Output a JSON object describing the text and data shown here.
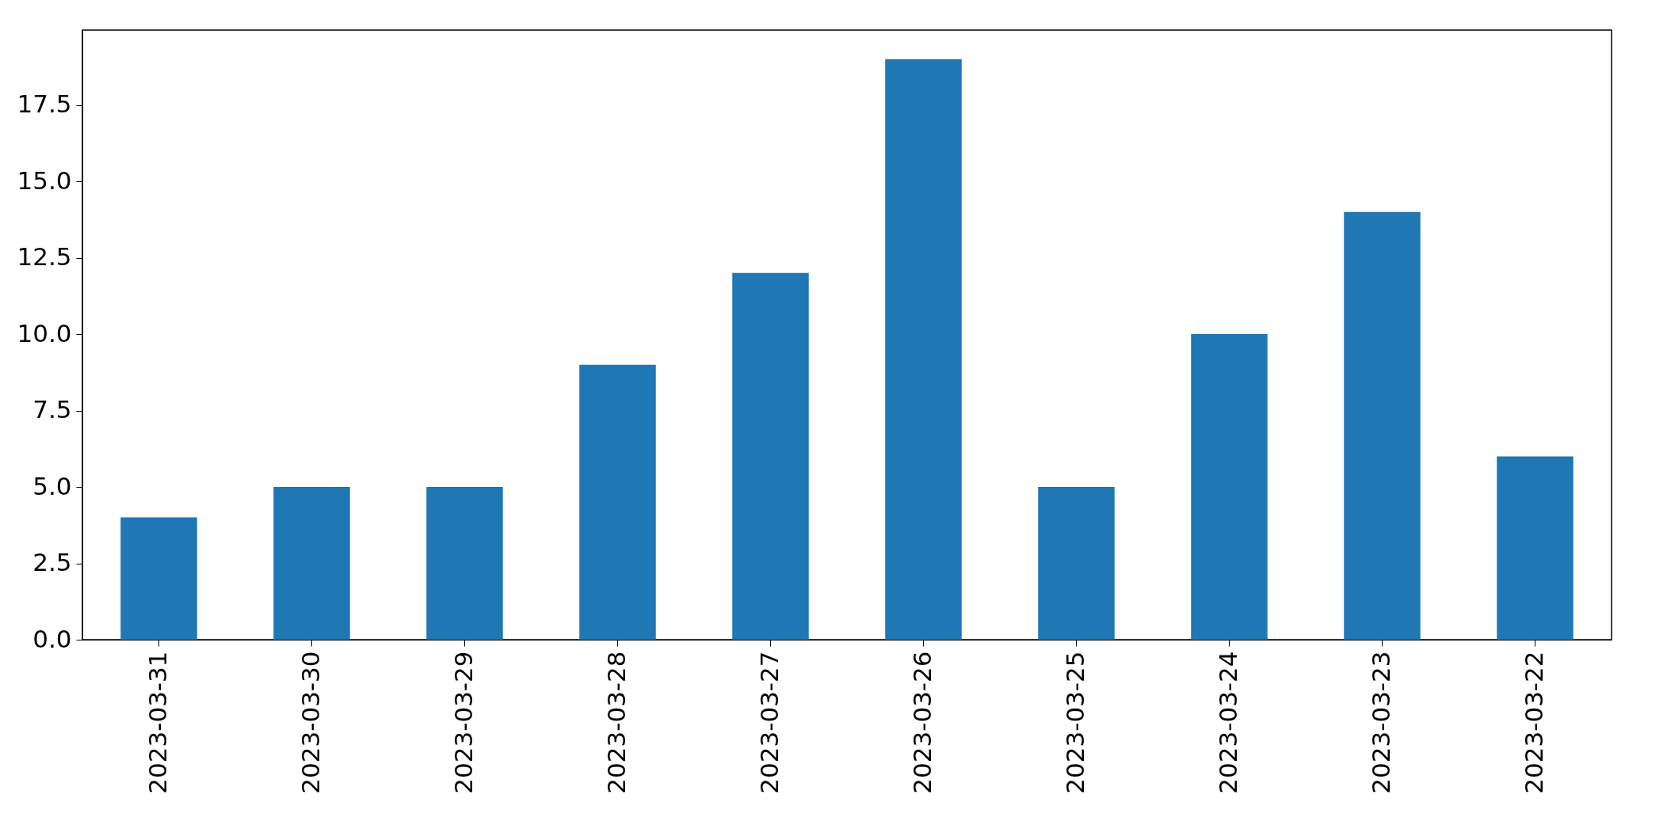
{
  "chart_data": {
    "type": "bar",
    "categories": [
      "2023-03-31",
      "2023-03-30",
      "2023-03-29",
      "2023-03-28",
      "2023-03-27",
      "2023-03-26",
      "2023-03-25",
      "2023-03-24",
      "2023-03-23",
      "2023-03-22"
    ],
    "values": [
      4,
      5,
      5,
      9,
      12,
      19,
      5,
      10,
      14,
      6
    ],
    "color": "#1f77b4",
    "ylim": [
      0,
      19.95
    ],
    "yticks": [
      {
        "value": 0,
        "label": "0.0"
      },
      2.5,
      {
        "value": 5,
        "label": "5.0"
      },
      7.5,
      {
        "value": 10,
        "label": "10.0"
      },
      12.5,
      {
        "value": 15,
        "label": "15.0"
      },
      17.5
    ]
  }
}
